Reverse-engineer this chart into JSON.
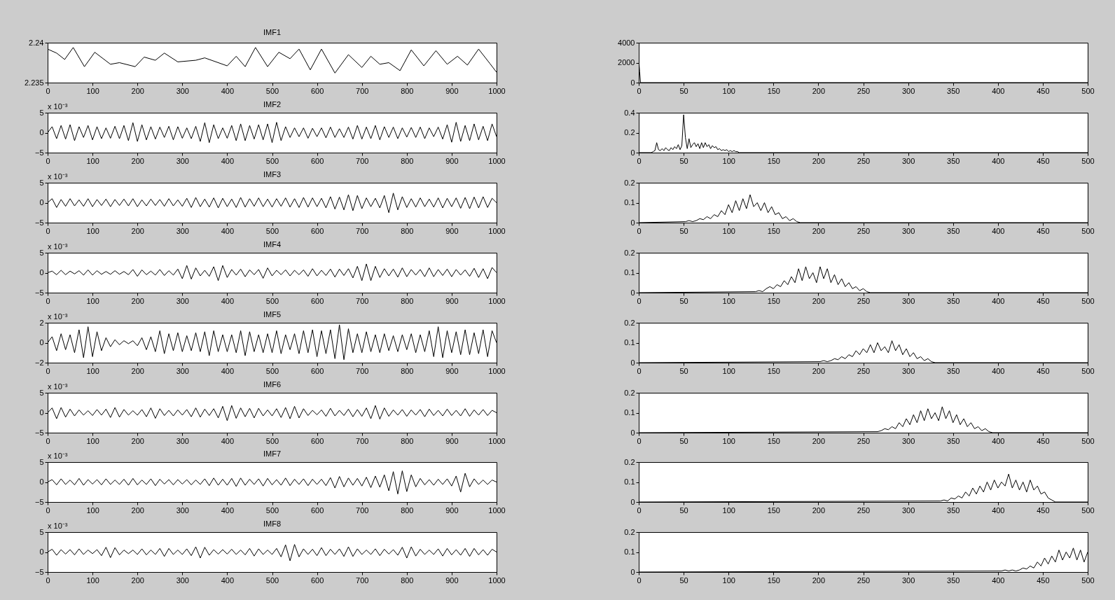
{
  "chart_data": [
    {
      "type": "line",
      "title": "IMF1",
      "color": "#000000",
      "xlim": [
        0,
        1000
      ],
      "xticks": [
        0,
        100,
        200,
        300,
        400,
        500,
        600,
        700,
        800,
        900,
        1000
      ],
      "ylim": [
        2.235,
        2.24
      ],
      "yticks": [
        2.235,
        2.24
      ],
      "x": [
        0,
        20,
        38,
        57,
        82,
        105,
        140,
        160,
        195,
        215,
        240,
        260,
        290,
        330,
        350,
        400,
        420,
        440,
        463,
        490,
        515,
        540,
        560,
        585,
        610,
        640,
        670,
        700,
        720,
        740,
        760,
        785,
        810,
        838,
        865,
        890,
        913,
        935,
        960,
        985,
        1000
      ],
      "values": [
        2.2392,
        2.2387,
        2.2379,
        2.2394,
        2.237,
        2.2388,
        2.2373,
        2.2375,
        2.237,
        2.2382,
        2.2378,
        2.2387,
        2.2376,
        2.2378,
        2.2381,
        2.2371,
        2.2383,
        2.237,
        2.2394,
        2.237,
        2.2388,
        2.238,
        2.2392,
        2.2366,
        2.2392,
        2.2362,
        2.2385,
        2.2369,
        2.2383,
        2.2373,
        2.2375,
        2.2365,
        2.2391,
        2.2371,
        2.239,
        2.2373,
        2.2383,
        2.2372,
        2.2392,
        2.2374,
        2.2363
      ]
    },
    {
      "type": "line",
      "color": "#000000",
      "xlim": [
        0,
        500
      ],
      "xticks": [
        0,
        50,
        100,
        150,
        200,
        250,
        300,
        350,
        400,
        450,
        500
      ],
      "ylim": [
        0,
        4000
      ],
      "yticks": [
        0,
        2000,
        4000
      ],
      "x": [
        0,
        1,
        2,
        500
      ],
      "values": [
        2300,
        1100,
        0,
        0
      ]
    },
    {
      "type": "line",
      "title": "IMF2",
      "annotations": [
        "x 10⁻³"
      ],
      "color": "#000000",
      "xlim": [
        0,
        1000
      ],
      "xticks": [
        0,
        100,
        200,
        300,
        400,
        500,
        600,
        700,
        800,
        900,
        1000
      ],
      "ylim": [
        -5,
        5
      ],
      "yticks": [
        -5,
        0,
        5
      ],
      "x": [
        0,
        10,
        20,
        30,
        40,
        50,
        60,
        70,
        80,
        90,
        100,
        110,
        120,
        130,
        140,
        150,
        160,
        170,
        180,
        190,
        200,
        210,
        220,
        230,
        240,
        250,
        260,
        270,
        280,
        290,
        300,
        310,
        320,
        330,
        340,
        350,
        360,
        370,
        380,
        390,
        400,
        410,
        420,
        430,
        440,
        450,
        460,
        470,
        480,
        490,
        500,
        510,
        520,
        530,
        540,
        550,
        560,
        570,
        580,
        590,
        600,
        610,
        620,
        630,
        640,
        650,
        660,
        670,
        680,
        690,
        700,
        710,
        720,
        730,
        740,
        750,
        760,
        770,
        780,
        790,
        800,
        810,
        820,
        830,
        840,
        850,
        860,
        870,
        880,
        890,
        900,
        910,
        920,
        930,
        940,
        950,
        960,
        970,
        980,
        990,
        1000
      ],
      "values": [
        0,
        1.5,
        -1.5,
        1.8,
        -1.6,
        2,
        -2,
        1.5,
        -1.2,
        1.8,
        -1.8,
        1.5,
        -1.5,
        1.2,
        -1.4,
        1.6,
        -1.5,
        1.8,
        -2,
        2.5,
        -2.2,
        2,
        -1.8,
        1.5,
        -1.6,
        1.4,
        -1.2,
        1.6,
        -1.8,
        1.5,
        -1.4,
        1.2,
        -1.5,
        1.6,
        -2.2,
        2.5,
        -2.5,
        2,
        -1.5,
        1.2,
        -1.4,
        1.8,
        -2,
        2.2,
        -2,
        1.8,
        -1.6,
        2,
        -1.8,
        2.2,
        -2.5,
        2.6,
        -2,
        1.5,
        -1.2,
        1.2,
        -1,
        1.2,
        -1.4,
        1.1,
        -1,
        1.2,
        -1.3,
        1.4,
        -1.2,
        1,
        -1.2,
        1.4,
        -1.6,
        1.8,
        -1.6,
        1.4,
        -1.5,
        1.8,
        -1.8,
        1.5,
        -1.2,
        1.4,
        -1.5,
        1.2,
        -1.1,
        1.3,
        -1.2,
        1.4,
        -1.5,
        1.2,
        -1,
        1.4,
        -1.6,
        2,
        -2.4,
        2.6,
        -2.2,
        1.8,
        -2,
        2.2,
        -1.8,
        1.6,
        -2,
        2.2,
        -1
      ]
    },
    {
      "type": "line",
      "color": "#000000",
      "xlim": [
        0,
        500
      ],
      "xticks": [
        0,
        50,
        100,
        150,
        200,
        250,
        300,
        350,
        400,
        450,
        500
      ],
      "ylim": [
        0,
        0.4
      ],
      "yticks": [
        0,
        0.2,
        0.4
      ],
      "x": [
        0,
        14,
        16,
        18,
        20,
        22,
        24,
        26,
        28,
        30,
        32,
        34,
        36,
        38,
        40,
        42,
        44,
        46,
        48,
        50,
        52,
        54,
        56,
        58,
        60,
        62,
        64,
        66,
        68,
        70,
        72,
        74,
        76,
        78,
        80,
        82,
        84,
        86,
        88,
        90,
        92,
        94,
        96,
        98,
        100,
        102,
        104,
        106,
        108,
        110,
        112,
        500
      ],
      "values": [
        0,
        0,
        0.01,
        0.02,
        0.1,
        0.03,
        0.02,
        0.04,
        0.02,
        0.05,
        0.03,
        0.02,
        0.05,
        0.03,
        0.06,
        0.04,
        0.08,
        0.03,
        0.07,
        0.38,
        0.15,
        0.04,
        0.14,
        0.05,
        0.08,
        0.1,
        0.06,
        0.09,
        0.04,
        0.1,
        0.05,
        0.1,
        0.06,
        0.08,
        0.04,
        0.07,
        0.05,
        0.06,
        0.03,
        0.04,
        0.02,
        0.03,
        0.02,
        0.03,
        0.01,
        0.02,
        0.01,
        0.02,
        0.01,
        0.01,
        0,
        0
      ]
    },
    {
      "type": "line",
      "title": "IMF3",
      "annotations": [
        "x 10⁻³"
      ],
      "color": "#000000",
      "xlim": [
        0,
        1000
      ],
      "xticks": [
        0,
        100,
        200,
        300,
        400,
        500,
        600,
        700,
        800,
        900,
        1000
      ],
      "ylim": [
        -5,
        5
      ],
      "yticks": [
        -5,
        0,
        5
      ],
      "x": [
        0,
        10,
        20,
        30,
        40,
        50,
        60,
        70,
        80,
        90,
        100,
        110,
        120,
        130,
        140,
        150,
        160,
        170,
        180,
        190,
        200,
        210,
        220,
        230,
        240,
        250,
        260,
        270,
        280,
        290,
        300,
        310,
        320,
        330,
        340,
        350,
        360,
        370,
        380,
        390,
        400,
        410,
        420,
        430,
        440,
        450,
        460,
        470,
        480,
        490,
        500,
        510,
        520,
        530,
        540,
        550,
        560,
        570,
        580,
        590,
        600,
        610,
        620,
        630,
        640,
        650,
        660,
        670,
        680,
        690,
        700,
        710,
        720,
        730,
        740,
        750,
        760,
        770,
        780,
        790,
        800,
        810,
        820,
        830,
        840,
        850,
        860,
        870,
        880,
        890,
        900,
        910,
        920,
        930,
        940,
        950,
        960,
        970,
        980,
        990,
        1000
      ],
      "values": [
        0,
        1,
        -1.2,
        0.8,
        -0.9,
        1,
        -0.8,
        0.7,
        -0.9,
        1,
        -1,
        0.8,
        -0.7,
        0.9,
        -1,
        0.8,
        -0.7,
        0.9,
        -0.8,
        1,
        -1,
        0.7,
        -0.8,
        0.9,
        -0.7,
        0.8,
        -0.9,
        1,
        -0.8,
        0.7,
        -0.9,
        1.1,
        -1.2,
        1.3,
        -1,
        0.9,
        -1.1,
        1.2,
        -1.3,
        1.1,
        -1,
        0.9,
        -1.2,
        1.3,
        -1.1,
        1,
        -0.9,
        1.2,
        -1,
        0.9,
        -1.1,
        1,
        -0.9,
        1.2,
        -1.1,
        1,
        -1.2,
        1.3,
        -1.1,
        1.2,
        -1,
        1.1,
        -1.3,
        1.5,
        -1.6,
        1.4,
        -1.8,
        2,
        -2,
        1.8,
        -1.5,
        1.2,
        -1,
        1.1,
        -1.3,
        1.8,
        -2.5,
        2.4,
        -1.8,
        1.5,
        -1.2,
        1,
        -1.1,
        1.2,
        -1,
        0.9,
        -1.1,
        1.2,
        -1.3,
        1.1,
        -1,
        1.2,
        -1.4,
        1.3,
        -1.5,
        1.4,
        -1.3,
        1.5,
        -1.2,
        1.1,
        0
      ]
    },
    {
      "type": "line",
      "color": "#000000",
      "xlim": [
        0,
        500
      ],
      "xticks": [
        0,
        50,
        100,
        150,
        200,
        250,
        300,
        350,
        400,
        450,
        500
      ],
      "ylim": [
        0,
        0.2
      ],
      "yticks": [
        0,
        0.1,
        0.2
      ],
      "x": [
        0,
        52,
        56,
        60,
        64,
        68,
        72,
        76,
        80,
        84,
        88,
        92,
        96,
        100,
        104,
        108,
        112,
        116,
        120,
        124,
        128,
        132,
        136,
        140,
        144,
        148,
        152,
        156,
        160,
        164,
        168,
        172,
        176,
        180,
        500
      ],
      "values": [
        0,
        0.005,
        0.01,
        0.005,
        0.01,
        0.02,
        0.015,
        0.03,
        0.02,
        0.04,
        0.03,
        0.06,
        0.04,
        0.09,
        0.05,
        0.11,
        0.06,
        0.12,
        0.07,
        0.14,
        0.08,
        0.1,
        0.06,
        0.1,
        0.05,
        0.08,
        0.04,
        0.05,
        0.02,
        0.03,
        0.01,
        0.02,
        0.005,
        0,
        0
      ]
    },
    {
      "type": "line",
      "title": "IMF4",
      "annotations": [
        "x 10⁻³"
      ],
      "color": "#000000",
      "xlim": [
        0,
        1000
      ],
      "xticks": [
        0,
        100,
        200,
        300,
        400,
        500,
        600,
        700,
        800,
        900,
        1000
      ],
      "ylim": [
        -5,
        5
      ],
      "yticks": [
        -5,
        0,
        5
      ],
      "x": [
        0,
        10,
        20,
        30,
        40,
        50,
        60,
        70,
        80,
        90,
        100,
        110,
        120,
        130,
        140,
        150,
        160,
        170,
        180,
        190,
        200,
        210,
        220,
        230,
        240,
        250,
        260,
        270,
        280,
        290,
        300,
        310,
        320,
        330,
        340,
        350,
        360,
        370,
        380,
        390,
        400,
        410,
        420,
        430,
        440,
        450,
        460,
        470,
        480,
        490,
        500,
        510,
        520,
        530,
        540,
        550,
        560,
        570,
        580,
        590,
        600,
        610,
        620,
        630,
        640,
        650,
        660,
        670,
        680,
        690,
        700,
        710,
        720,
        730,
        740,
        750,
        760,
        770,
        780,
        790,
        800,
        810,
        820,
        830,
        840,
        850,
        860,
        870,
        880,
        890,
        900,
        910,
        920,
        930,
        940,
        950,
        960,
        970,
        980,
        990,
        1000
      ],
      "values": [
        0,
        0.4,
        -0.5,
        0.6,
        -0.5,
        0.4,
        -0.3,
        0.5,
        -0.6,
        0.7,
        -0.6,
        0.5,
        -0.4,
        0.3,
        -0.4,
        0.5,
        -0.4,
        0.3,
        -0.5,
        0.8,
        -0.9,
        0.7,
        -0.5,
        0.4,
        -0.6,
        0.8,
        -0.7,
        0.5,
        -0.6,
        0.9,
        -1.5,
        1.8,
        -1.6,
        1.2,
        -0.8,
        0.6,
        -0.9,
        1.5,
        -2,
        1.8,
        -1.2,
        0.8,
        -0.6,
        0.9,
        -1,
        0.7,
        -0.5,
        0.8,
        -1.4,
        1.2,
        -0.8,
        0.6,
        -0.5,
        0.7,
        -0.8,
        0.6,
        -0.5,
        0.7,
        -0.9,
        1,
        -0.8,
        0.6,
        -0.7,
        0.9,
        -1.1,
        0.9,
        -0.7,
        1,
        -1.3,
        1.6,
        -2,
        2.2,
        -2,
        1.6,
        -1.2,
        1,
        -0.8,
        0.9,
        -1.1,
        1.2,
        -1,
        0.8,
        -0.6,
        0.8,
        -1,
        1.2,
        -1,
        0.8,
        -0.7,
        0.9,
        -1,
        0.8,
        -0.6,
        0.7,
        -0.9,
        1.1,
        -1.2,
        1,
        -1.5,
        1.3,
        0
      ]
    },
    {
      "type": "line",
      "color": "#000000",
      "xlim": [
        0,
        500
      ],
      "xticks": [
        0,
        50,
        100,
        150,
        200,
        250,
        300,
        350,
        400,
        450,
        500
      ],
      "ylim": [
        0,
        0.2
      ],
      "yticks": [
        0,
        0.1,
        0.2
      ],
      "x": [
        0,
        130,
        134,
        138,
        142,
        146,
        150,
        154,
        158,
        162,
        166,
        170,
        174,
        178,
        182,
        186,
        190,
        194,
        198,
        202,
        206,
        210,
        214,
        218,
        222,
        226,
        230,
        234,
        238,
        242,
        246,
        250,
        254,
        258,
        500
      ],
      "values": [
        0,
        0.005,
        0.01,
        0.005,
        0.02,
        0.03,
        0.02,
        0.04,
        0.03,
        0.06,
        0.04,
        0.08,
        0.05,
        0.12,
        0.06,
        0.13,
        0.07,
        0.1,
        0.05,
        0.13,
        0.07,
        0.12,
        0.05,
        0.09,
        0.04,
        0.07,
        0.03,
        0.05,
        0.02,
        0.03,
        0.01,
        0.02,
        0.005,
        0,
        0
      ]
    },
    {
      "type": "line",
      "title": "IMF5",
      "annotations": [
        "x 10⁻³"
      ],
      "color": "#000000",
      "xlim": [
        0,
        1000
      ],
      "xticks": [
        0,
        100,
        200,
        300,
        400,
        500,
        600,
        700,
        800,
        900,
        1000
      ],
      "ylim": [
        -2,
        2
      ],
      "yticks": [
        -2,
        0,
        2
      ],
      "x": [
        0,
        10,
        20,
        30,
        40,
        50,
        60,
        70,
        80,
        90,
        100,
        110,
        120,
        130,
        140,
        150,
        160,
        170,
        180,
        190,
        200,
        210,
        220,
        230,
        240,
        250,
        260,
        270,
        280,
        290,
        300,
        310,
        320,
        330,
        340,
        350,
        360,
        370,
        380,
        390,
        400,
        410,
        420,
        430,
        440,
        450,
        460,
        470,
        480,
        490,
        500,
        510,
        520,
        530,
        540,
        550,
        560,
        570,
        580,
        590,
        600,
        610,
        620,
        630,
        640,
        650,
        660,
        670,
        680,
        690,
        700,
        710,
        720,
        730,
        740,
        750,
        760,
        770,
        780,
        790,
        800,
        810,
        820,
        830,
        840,
        850,
        860,
        870,
        880,
        890,
        900,
        910,
        920,
        930,
        940,
        950,
        960,
        970,
        980,
        990,
        1000
      ],
      "values": [
        0,
        0.6,
        -0.8,
        0.9,
        -0.7,
        0.8,
        -1,
        1.3,
        -1.5,
        1.6,
        -1.4,
        1.1,
        -0.8,
        0.5,
        -0.4,
        0.3,
        -0.2,
        0.2,
        -0.1,
        0.2,
        -0.3,
        0.5,
        -0.7,
        0.6,
        -0.9,
        1.2,
        -1.1,
        0.9,
        -0.8,
        1,
        -0.9,
        0.7,
        -0.8,
        1,
        -0.9,
        1.1,
        -1.3,
        1.2,
        -0.9,
        0.8,
        -0.9,
        0.8,
        -1,
        1.2,
        -1.3,
        1.1,
        -0.9,
        0.8,
        -1,
        0.9,
        -1,
        1.2,
        -1.1,
        0.8,
        -0.7,
        0.9,
        -1.1,
        1.2,
        -1,
        1.3,
        -1.4,
        1.2,
        -1.1,
        1.3,
        -1.6,
        1.8,
        -1.7,
        1.4,
        -1,
        0.9,
        -1,
        1.1,
        -0.9,
        0.8,
        -1,
        0.9,
        -0.8,
        0.7,
        -0.9,
        0.8,
        -0.7,
        0.9,
        -1,
        0.8,
        -0.9,
        1.2,
        -1.4,
        1.6,
        -1.5,
        1.2,
        -1,
        1.1,
        -1.2,
        1.3,
        -1.2,
        1,
        -1.1,
        1.3,
        -1.4,
        1.2,
        0
      ]
    },
    {
      "type": "line",
      "color": "#000000",
      "xlim": [
        0,
        500
      ],
      "xticks": [
        0,
        50,
        100,
        150,
        200,
        250,
        300,
        350,
        400,
        450,
        500
      ],
      "ylim": [
        0,
        0.2
      ],
      "yticks": [
        0,
        0.1,
        0.2
      ],
      "x": [
        0,
        202,
        206,
        210,
        214,
        218,
        222,
        226,
        230,
        234,
        238,
        242,
        246,
        250,
        254,
        258,
        262,
        266,
        270,
        274,
        278,
        282,
        286,
        290,
        294,
        298,
        302,
        306,
        310,
        314,
        318,
        322,
        326,
        330,
        500
      ],
      "values": [
        0,
        0.005,
        0.01,
        0.005,
        0.01,
        0.02,
        0.015,
        0.03,
        0.02,
        0.04,
        0.03,
        0.06,
        0.04,
        0.07,
        0.05,
        0.09,
        0.05,
        0.1,
        0.06,
        0.08,
        0.05,
        0.11,
        0.06,
        0.09,
        0.04,
        0.07,
        0.03,
        0.05,
        0.02,
        0.03,
        0.01,
        0.02,
        0.005,
        0,
        0
      ]
    },
    {
      "type": "line",
      "title": "IMF6",
      "annotations": [
        "x 10⁻³"
      ],
      "color": "#000000",
      "xlim": [
        0,
        1000
      ],
      "xticks": [
        0,
        100,
        200,
        300,
        400,
        500,
        600,
        700,
        800,
        900,
        1000
      ],
      "ylim": [
        -5,
        5
      ],
      "yticks": [
        -5,
        0,
        5
      ],
      "x": [
        0,
        10,
        20,
        30,
        40,
        50,
        60,
        70,
        80,
        90,
        100,
        110,
        120,
        130,
        140,
        150,
        160,
        170,
        180,
        190,
        200,
        210,
        220,
        230,
        240,
        250,
        260,
        270,
        280,
        290,
        300,
        310,
        320,
        330,
        340,
        350,
        360,
        370,
        380,
        390,
        400,
        410,
        420,
        430,
        440,
        450,
        460,
        470,
        480,
        490,
        500,
        510,
        520,
        530,
        540,
        550,
        560,
        570,
        580,
        590,
        600,
        610,
        620,
        630,
        640,
        650,
        660,
        670,
        680,
        690,
        700,
        710,
        720,
        730,
        740,
        750,
        760,
        770,
        780,
        790,
        800,
        810,
        820,
        830,
        840,
        850,
        860,
        870,
        880,
        890,
        900,
        910,
        920,
        930,
        940,
        950,
        960,
        970,
        980,
        990,
        1000
      ],
      "values": [
        0,
        1.2,
        -1.5,
        1.3,
        -1.1,
        0.9,
        -0.8,
        0.7,
        -0.6,
        0.5,
        -0.7,
        0.8,
        -0.6,
        0.9,
        -1.2,
        1.3,
        -1.1,
        0.8,
        -0.6,
        0.5,
        -0.6,
        0.8,
        -1,
        1.2,
        -1.4,
        1,
        -0.7,
        0.6,
        -0.8,
        0.7,
        -0.6,
        0.8,
        -1,
        1.2,
        -1.1,
        0.9,
        -0.7,
        1,
        -1.3,
        1.6,
        -2,
        1.8,
        -1.4,
        1.2,
        -1,
        1.1,
        -1.3,
        1.1,
        -0.8,
        0.7,
        -0.8,
        1,
        -1.2,
        1.3,
        -1.5,
        1.6,
        -1.3,
        1,
        -0.7,
        0.6,
        -0.5,
        0.7,
        -0.9,
        1.1,
        -0.8,
        0.6,
        -0.7,
        0.9,
        -1,
        0.8,
        -0.9,
        1.2,
        -1.5,
        1.8,
        -1.6,
        1.2,
        -0.9,
        0.7,
        -0.6,
        0.8,
        -0.9,
        0.7,
        -0.6,
        0.8,
        -1,
        0.9,
        -0.7,
        0.6,
        -0.8,
        0.9,
        -0.7,
        0.6,
        -0.8,
        1,
        -0.9,
        0.7,
        -0.6,
        0.8,
        -0.7,
        0.6,
        0
      ]
    },
    {
      "type": "line",
      "color": "#000000",
      "xlim": [
        0,
        500
      ],
      "xticks": [
        0,
        50,
        100,
        150,
        200,
        250,
        300,
        350,
        400,
        450,
        500
      ],
      "ylim": [
        0,
        0.2
      ],
      "yticks": [
        0,
        0.1,
        0.2
      ],
      "x": [
        0,
        266,
        270,
        274,
        278,
        282,
        286,
        290,
        294,
        298,
        302,
        306,
        310,
        314,
        318,
        322,
        326,
        330,
        334,
        338,
        342,
        346,
        350,
        354,
        358,
        362,
        366,
        370,
        374,
        378,
        382,
        386,
        390,
        394,
        500
      ],
      "values": [
        0,
        0.005,
        0.01,
        0.02,
        0.015,
        0.03,
        0.02,
        0.05,
        0.03,
        0.07,
        0.04,
        0.09,
        0.05,
        0.11,
        0.06,
        0.12,
        0.07,
        0.1,
        0.06,
        0.13,
        0.07,
        0.11,
        0.05,
        0.09,
        0.04,
        0.07,
        0.03,
        0.05,
        0.02,
        0.03,
        0.01,
        0.02,
        0.005,
        0,
        0
      ]
    },
    {
      "type": "line",
      "title": "IMF7",
      "annotations": [
        "x 10⁻³"
      ],
      "color": "#000000",
      "xlim": [
        0,
        1000
      ],
      "xticks": [
        0,
        100,
        200,
        300,
        400,
        500,
        600,
        700,
        800,
        900,
        1000
      ],
      "ylim": [
        -5,
        5
      ],
      "yticks": [
        -5,
        0,
        5
      ],
      "x": [
        0,
        10,
        20,
        30,
        40,
        50,
        60,
        70,
        80,
        90,
        100,
        110,
        120,
        130,
        140,
        150,
        160,
        170,
        180,
        190,
        200,
        210,
        220,
        230,
        240,
        250,
        260,
        270,
        280,
        290,
        300,
        310,
        320,
        330,
        340,
        350,
        360,
        370,
        380,
        390,
        400,
        410,
        420,
        430,
        440,
        450,
        460,
        470,
        480,
        490,
        500,
        510,
        520,
        530,
        540,
        550,
        560,
        570,
        580,
        590,
        600,
        610,
        620,
        630,
        640,
        650,
        660,
        670,
        680,
        690,
        700,
        710,
        720,
        730,
        740,
        750,
        760,
        770,
        780,
        790,
        800,
        810,
        820,
        830,
        840,
        850,
        860,
        870,
        880,
        890,
        900,
        910,
        920,
        930,
        940,
        950,
        960,
        970,
        980,
        990,
        1000
      ],
      "values": [
        0,
        0.6,
        -0.7,
        0.8,
        -0.6,
        0.5,
        -0.7,
        0.9,
        -0.8,
        0.6,
        -0.5,
        0.6,
        -0.7,
        0.8,
        -0.6,
        0.5,
        -0.6,
        0.7,
        -0.8,
        0.9,
        -0.7,
        0.5,
        -0.6,
        0.8,
        -0.9,
        0.7,
        -0.5,
        0.6,
        -0.7,
        0.6,
        -0.5,
        0.6,
        -0.7,
        0.5,
        -0.6,
        0.8,
        -0.9,
        1,
        -0.8,
        0.7,
        -0.8,
        0.9,
        -1.1,
        1,
        -0.8,
        0.7,
        -0.6,
        0.8,
        -1,
        0.9,
        -0.7,
        0.6,
        -0.8,
        1,
        -0.9,
        0.7,
        -0.6,
        0.8,
        -0.9,
        0.7,
        -0.6,
        0.7,
        -0.9,
        1.1,
        -1.5,
        1.4,
        -1.2,
        1,
        -0.8,
        0.9,
        -1,
        1.2,
        -1.4,
        1.5,
        -1.3,
        1.8,
        -2.2,
        2.6,
        -3,
        2.8,
        -2.4,
        1.8,
        -1.2,
        0.9,
        -0.7,
        0.6,
        -0.8,
        0.7,
        -0.6,
        0.8,
        -1,
        1.5,
        -2.5,
        2.2,
        -1.2,
        0.8,
        -0.6,
        0.5,
        -0.6,
        0.5,
        0
      ]
    },
    {
      "type": "line",
      "color": "#000000",
      "xlim": [
        0,
        500
      ],
      "xticks": [
        0,
        50,
        100,
        150,
        200,
        250,
        300,
        350,
        400,
        450,
        500
      ],
      "ylim": [
        0,
        0.2
      ],
      "yticks": [
        0,
        0.1,
        0.2
      ],
      "x": [
        0,
        336,
        340,
        344,
        348,
        352,
        356,
        360,
        364,
        368,
        372,
        376,
        380,
        384,
        388,
        392,
        396,
        400,
        404,
        408,
        412,
        416,
        420,
        424,
        428,
        432,
        436,
        440,
        444,
        448,
        452,
        456,
        460,
        464,
        500
      ],
      "values": [
        0,
        0.005,
        0.01,
        0.005,
        0.02,
        0.015,
        0.03,
        0.02,
        0.05,
        0.03,
        0.07,
        0.04,
        0.08,
        0.05,
        0.1,
        0.06,
        0.11,
        0.07,
        0.1,
        0.08,
        0.14,
        0.07,
        0.11,
        0.06,
        0.1,
        0.05,
        0.11,
        0.06,
        0.08,
        0.04,
        0.05,
        0.02,
        0.01,
        0,
        0
      ]
    },
    {
      "type": "line",
      "title": "IMF8",
      "annotations": [
        "x 10⁻³"
      ],
      "color": "#000000",
      "xlim": [
        0,
        1000
      ],
      "xticks": [
        0,
        100,
        200,
        300,
        400,
        500,
        600,
        700,
        800,
        900,
        1000
      ],
      "ylim": [
        -5,
        5
      ],
      "yticks": [
        -5,
        0,
        5
      ],
      "x": [
        0,
        10,
        20,
        30,
        40,
        50,
        60,
        70,
        80,
        90,
        100,
        110,
        120,
        130,
        140,
        150,
        160,
        170,
        180,
        190,
        200,
        210,
        220,
        230,
        240,
        250,
        260,
        270,
        280,
        290,
        300,
        310,
        320,
        330,
        340,
        350,
        360,
        370,
        380,
        390,
        400,
        410,
        420,
        430,
        440,
        450,
        460,
        470,
        480,
        490,
        500,
        510,
        520,
        530,
        540,
        550,
        560,
        570,
        580,
        590,
        600,
        610,
        620,
        630,
        640,
        650,
        660,
        670,
        680,
        690,
        700,
        710,
        720,
        730,
        740,
        750,
        760,
        770,
        780,
        790,
        800,
        810,
        820,
        830,
        840,
        850,
        860,
        870,
        880,
        890,
        900,
        910,
        920,
        930,
        940,
        950,
        960,
        970,
        980,
        990,
        1000
      ],
      "values": [
        0,
        0.7,
        -0.8,
        0.6,
        -0.5,
        0.6,
        -0.7,
        0.8,
        -0.6,
        0.5,
        -0.4,
        0.6,
        -0.9,
        1.2,
        -1.4,
        1.1,
        -0.7,
        0.5,
        -0.4,
        0.5,
        -0.6,
        0.8,
        -0.7,
        0.5,
        -0.6,
        0.9,
        -1.1,
        0.9,
        -0.6,
        0.5,
        -0.6,
        0.8,
        -0.9,
        1.3,
        -1.5,
        1.2,
        -0.8,
        0.6,
        -0.5,
        0.6,
        -0.5,
        0.7,
        -0.6,
        0.5,
        -0.7,
        0.9,
        -1,
        0.8,
        -0.6,
        0.5,
        -0.6,
        0.9,
        -1.2,
        1.8,
        -2.2,
        1.9,
        -1.2,
        0.8,
        -0.6,
        0.7,
        -0.9,
        1.1,
        -0.9,
        0.7,
        -0.6,
        0.8,
        -1.1,
        1.3,
        -1.1,
        0.8,
        -0.6,
        0.5,
        -0.6,
        0.8,
        -0.9,
        0.7,
        -0.5,
        0.6,
        -0.8,
        1.2,
        -1.5,
        1.3,
        -1,
        0.7,
        -0.6,
        0.5,
        -0.6,
        0.8,
        -1,
        0.9,
        -0.7,
        0.6,
        -0.8,
        0.9,
        -1.1,
        0.9,
        -0.7,
        0.6,
        -0.8,
        0.7,
        0
      ]
    },
    {
      "type": "line",
      "color": "#000000",
      "xlim": [
        0,
        500
      ],
      "xticks": [
        0,
        50,
        100,
        150,
        200,
        250,
        300,
        350,
        400,
        450,
        500
      ],
      "ylim": [
        0,
        0.2
      ],
      "yticks": [
        0,
        0.1,
        0.2
      ],
      "x": [
        0,
        404,
        408,
        412,
        416,
        420,
        424,
        428,
        432,
        436,
        440,
        444,
        448,
        452,
        456,
        460,
        464,
        468,
        472,
        476,
        480,
        484,
        488,
        492,
        496,
        500
      ],
      "values": [
        0,
        0.005,
        0.01,
        0.005,
        0.01,
        0.005,
        0.01,
        0.02,
        0.015,
        0.03,
        0.02,
        0.05,
        0.03,
        0.07,
        0.04,
        0.08,
        0.05,
        0.11,
        0.06,
        0.1,
        0.07,
        0.12,
        0.06,
        0.11,
        0.05,
        0.1
      ]
    }
  ]
}
